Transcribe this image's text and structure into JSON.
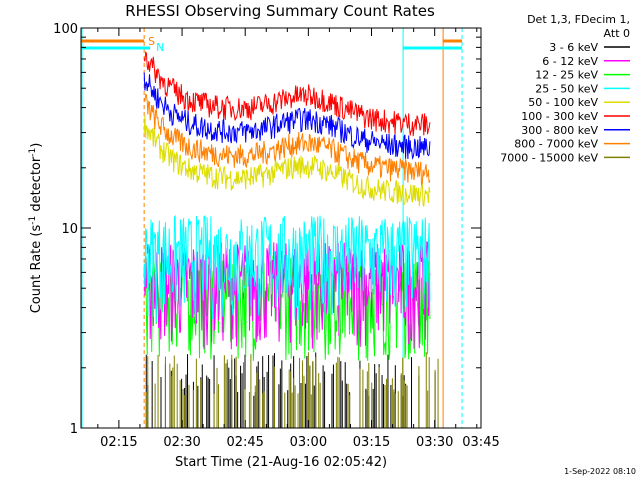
{
  "chart_data": {
    "type": "line",
    "title": "RHESSI Observing Summary Count Rates",
    "xlabel": "Start Time (21-Aug-16 02:05:42)",
    "ylabel_main": "Count Rate (s",
    "ylabel_sup1": "-1",
    "ylabel_mid": " detector",
    "ylabel_sup2": "-1",
    "ylabel_end": ")",
    "yscale": "log",
    "ylim": [
      1,
      100
    ],
    "xlim_minutes": [
      6,
      101
    ],
    "xticks": [
      {
        "label": "02:15",
        "minute": 15
      },
      {
        "label": "02:30",
        "minute": 30
      },
      {
        "label": "02:45",
        "minute": 45
      },
      {
        "label": "03:00",
        "minute": 60
      },
      {
        "label": "03:15",
        "minute": 75
      },
      {
        "label": "03:30",
        "minute": 90
      },
      {
        "label": "03:45",
        "minute": 105
      }
    ],
    "yticks": [
      {
        "label": "100",
        "value": 100
      },
      {
        "label": "10",
        "value": 10
      },
      {
        "label": "1",
        "value": 1
      }
    ],
    "legend_header": [
      "Det 1,3, FDecim 1,",
      "Att 0"
    ],
    "legend_position": "right",
    "timestamp": "1-Sep-2022 08:10",
    "markers": [
      {
        "text": "S",
        "color": "#ff8000"
      },
      {
        "text": "N",
        "color": "#00ffff"
      }
    ],
    "events": {
      "saa_start_minute": 21,
      "saa_end_minute": 96.5,
      "night_start_minute": 6,
      "night_end_minute": 82.5,
      "data_start_minute": 21,
      "data_end_minute": 92
    },
    "series": [
      {
        "name": "3 - 6 keV",
        "color": "#000000",
        "base": 1.6,
        "trend": "noise"
      },
      {
        "name": "6 - 12 keV",
        "color": "#ff00ff",
        "base": 5.5,
        "trend": "flat"
      },
      {
        "name": "12 - 25 keV",
        "color": "#00ff00",
        "base": 4.8,
        "trend": "flat"
      },
      {
        "name": "25 - 50 keV",
        "color": "#00ffff",
        "base": 7.5,
        "trend": "flat"
      },
      {
        "name": "50 - 100 keV",
        "color": "#dddd00",
        "base": 17,
        "trend": "decay_hump"
      },
      {
        "name": "100 - 300 keV",
        "color": "#ff0000",
        "base": 38,
        "trend": "decay_hump"
      },
      {
        "name": "300 - 800 keV",
        "color": "#0000ff",
        "base": 29,
        "trend": "decay_hump"
      },
      {
        "name": "800 - 7000 keV",
        "color": "#ff8000",
        "base": 22,
        "trend": "decay_hump"
      },
      {
        "name": "7000 - 15000 keV",
        "color": "#808000",
        "base": 1.6,
        "trend": "noise"
      }
    ]
  }
}
